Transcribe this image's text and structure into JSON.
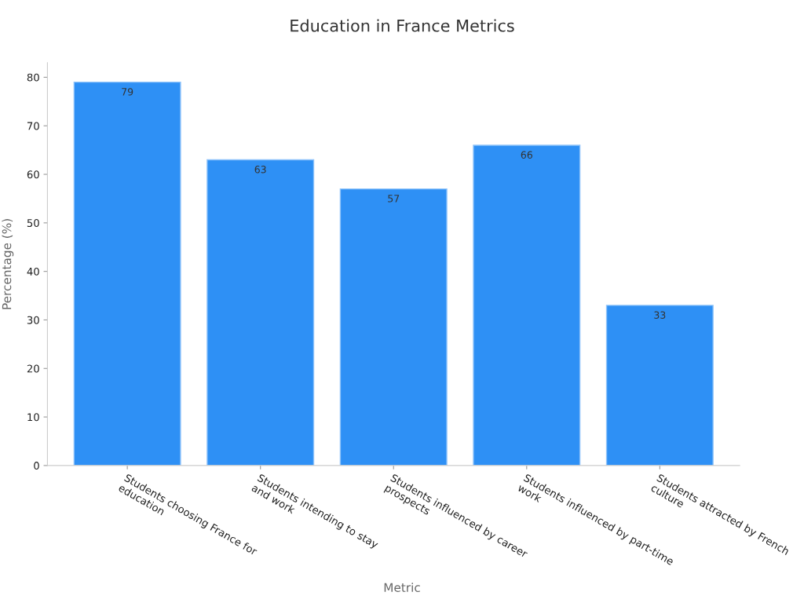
{
  "chart_data": {
    "type": "bar",
    "title": "Education in France Metrics",
    "xlabel": "Metric",
    "ylabel": "Percentage (%)",
    "categories": [
      "Students choosing France for\neducation",
      "Students intending to stay\nand work",
      "Students influenced by career\nprospects",
      "Students influenced by part-time\nwork",
      "Students attracted by French\nculture"
    ],
    "values": [
      79,
      63,
      57,
      66,
      33
    ],
    "color": "#2e90f5",
    "ylim": [
      0,
      83
    ],
    "yticks": [
      0,
      10,
      20,
      30,
      40,
      50,
      60,
      70,
      80
    ],
    "grid": false,
    "legend": false,
    "data_labels": true
  }
}
